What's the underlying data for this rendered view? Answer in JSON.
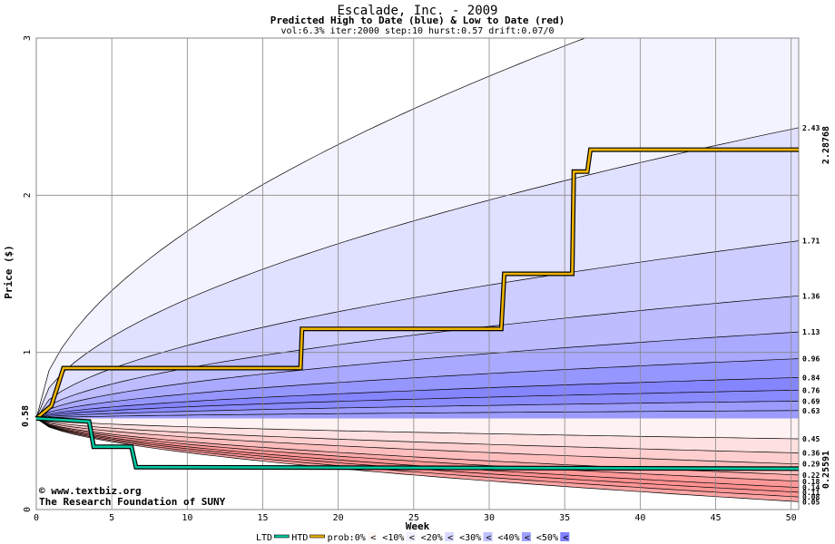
{
  "chart_data": {
    "type": "area",
    "title": "Escalade, Inc. - 2009",
    "subtitle": "Predicted High to Date (blue) &  Low to Date (red)",
    "params": "vol:6.3% iter:2000 step:10 hurst:0.57 drift:0.07/0",
    "xlabel": "Week",
    "ylabel": "Price ($)",
    "xlim": [
      0,
      50.5
    ],
    "ylim": [
      0,
      3
    ],
    "xticks": [
      0,
      5,
      10,
      15,
      20,
      25,
      30,
      35,
      40,
      45,
      50
    ],
    "yticks": [
      0,
      1,
      2,
      3
    ],
    "grid": true,
    "start_value": 0.58,
    "start_label": "0.58",
    "watermark": [
      "© www.textbiz.org",
      "The Research Foundation of SUNY"
    ],
    "high_quantiles_end": [
      "2.43",
      "1.71",
      "1.36",
      "1.13",
      "0.96",
      "0.84",
      "0.76",
      "0.69",
      "0.63"
    ],
    "low_quantiles_end": [
      "0.45",
      "0.36",
      "0.29",
      "0.22",
      "0.18",
      "0.14",
      "0.11",
      "0.08",
      "0.05"
    ],
    "htd_final_label": "2.28768",
    "ltd_final_label": "0.25591",
    "series": [
      {
        "name": "HTD",
        "color": "#f0b400",
        "x": [
          0,
          1,
          1.8,
          17.5,
          17.6,
          30.8,
          31,
          35.5,
          35.6,
          36.5,
          36.7,
          50.5
        ],
        "y": [
          0.58,
          0.66,
          0.9,
          0.9,
          1.15,
          1.15,
          1.5,
          1.5,
          2.15,
          2.15,
          2.29,
          2.29
        ]
      },
      {
        "name": "LTD",
        "color": "#00c8a0",
        "x": [
          0,
          3.5,
          3.8,
          6.3,
          6.6,
          50.5
        ],
        "y": [
          0.58,
          0.56,
          0.4,
          0.4,
          0.27,
          0.26
        ]
      }
    ],
    "legend": {
      "position": "bottom",
      "items": [
        "LTD",
        "HTD",
        "prob:0%",
        "<10%",
        "<20%",
        "<30%",
        "<40%",
        "<50%"
      ],
      "colors": [
        "#00c8a0",
        "#f0b400",
        "#fff5f5",
        "#eeeeff",
        "#d8d8ff",
        "#c0c0ff",
        "#a0a0ff",
        "#8080ff"
      ],
      "suffix": "<"
    },
    "colors": {
      "high_bands": [
        "#f3f3ff",
        "#e0e0ff",
        "#cdcdff",
        "#bcbcff",
        "#a9a9ff",
        "#9696ff",
        "#8585ff",
        "#8a8aff",
        "#9c9cff"
      ],
      "low_bands": [
        "#fff2f2",
        "#ffe0e0",
        "#ffcfcf",
        "#ffbebe",
        "#ffabab",
        "#ff9999",
        "#ff9090",
        "#ff9595",
        "#ffa5a5"
      ],
      "htd_side_label": "#a08000",
      "ltd_side_label": "#008060",
      "watermark": "#000080"
    }
  }
}
